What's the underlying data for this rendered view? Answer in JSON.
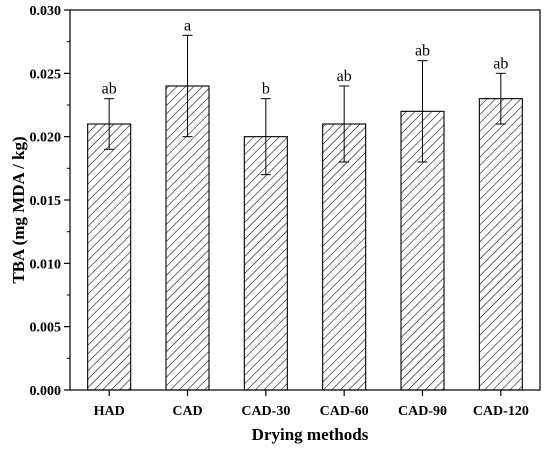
{
  "chart_data": {
    "type": "bar",
    "xlabel": "Drying methods",
    "ylabel": "TBA (mg MDA / kg)",
    "ylim": [
      0,
      0.03
    ],
    "yticks": [
      "0.000",
      "0.005",
      "0.010",
      "0.015",
      "0.020",
      "0.025",
      "0.030"
    ],
    "categories": [
      "HAD",
      "CAD",
      "CAD-30",
      "CAD-60",
      "CAD-90",
      "CAD-120"
    ],
    "series": [
      {
        "values": [
          0.021,
          0.024,
          0.02,
          0.021,
          0.022,
          0.023
        ],
        "error_low": [
          0.019,
          0.02,
          0.017,
          0.018,
          0.018,
          0.021
        ],
        "error_high": [
          0.023,
          0.028,
          0.023,
          0.024,
          0.026,
          0.025
        ],
        "significance_labels": [
          "ab",
          "a",
          "b",
          "ab",
          "ab",
          "ab"
        ]
      }
    ],
    "fill_pattern": "diagonal-hatch",
    "grid": false,
    "legend": "none"
  }
}
